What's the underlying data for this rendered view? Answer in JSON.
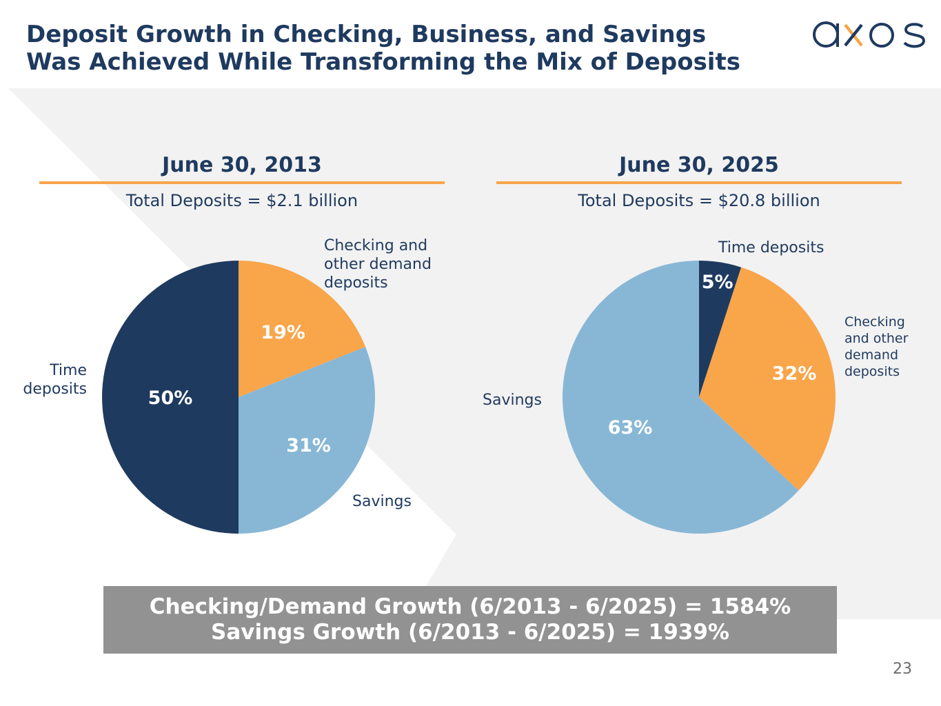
{
  "slide": {
    "title_line1": "Deposit Growth in Checking, Business, and Savings",
    "title_line2": "Was Achieved While Transforming the Mix of Deposits",
    "logo_text": "axos",
    "page_number": "23"
  },
  "colors": {
    "navy": "#1f3a5f",
    "orange": "#f9a54a",
    "light_blue": "#88b7d6",
    "panel_gray": "#f2f2f2",
    "box_gray": "#929292"
  },
  "chart_data": [
    {
      "type": "pie",
      "title": "June 30, 2013",
      "subtitle": "Total Deposits = $2.1 billion",
      "categories": [
        "Checking and other demand deposits",
        "Savings",
        "Time deposits"
      ],
      "values": [
        19,
        31,
        50
      ],
      "value_labels": [
        "19%",
        "31%",
        "50%"
      ],
      "colors": [
        "#f9a54a",
        "#88b7d6",
        "#1f3a5f"
      ],
      "start": "12 o'clock, clockwise"
    },
    {
      "type": "pie",
      "title": "June 30, 2025",
      "subtitle": "Total Deposits = $20.8 billion",
      "categories": [
        "Time deposits",
        "Checking and other demand deposits",
        "Savings"
      ],
      "values": [
        5,
        32,
        63
      ],
      "value_labels": [
        "5%",
        "32%",
        "63%"
      ],
      "colors": [
        "#1f3a5f",
        "#f9a54a",
        "#88b7d6"
      ],
      "start": "12 o'clock, clockwise"
    }
  ],
  "callouts": {
    "c2013_checking": "Checking and other demand deposits",
    "c2013_savings": "Savings",
    "c2013_time": "Time deposits",
    "c2025_time": "Time deposits",
    "c2025_checking": "Checking and other demand deposits",
    "c2025_savings": "Savings"
  },
  "summary": {
    "line1": "Checking/Demand Growth (6/2013 - 6/2025) = 1584%",
    "line2": "Savings Growth (6/2013 - 6/2025) = 1939%"
  }
}
